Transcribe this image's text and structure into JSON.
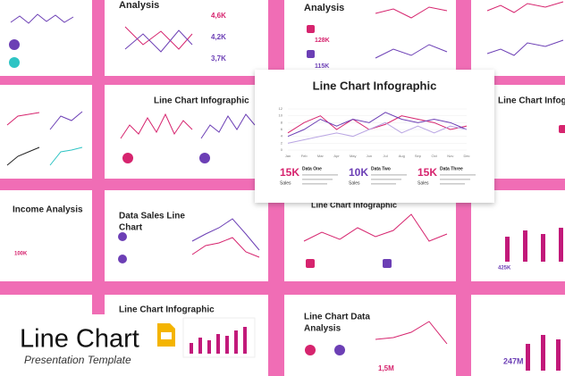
{
  "banner": {
    "title": "Line Chart",
    "subtitle": "Presentation Template"
  },
  "featured": {
    "title": "Line Chart Infographic",
    "chart": {
      "type": "line",
      "categories": [
        "Jan",
        "Feb",
        "Mar",
        "Apr",
        "May",
        "Jun",
        "Jul",
        "Aug",
        "Sep",
        "Oct",
        "Nov",
        "Dec"
      ],
      "ylim": [
        0,
        12
      ],
      "yticks": [
        0,
        2,
        4,
        6,
        8,
        10,
        12
      ],
      "series": [
        {
          "color": "#d6246e",
          "values": [
            5,
            8,
            10,
            6,
            9,
            6,
            7.5,
            10,
            9,
            8,
            6,
            7
          ]
        },
        {
          "color": "#6c3fb5",
          "values": [
            4,
            6,
            9,
            7,
            9,
            8,
            11,
            9,
            8,
            9,
            8,
            6
          ]
        },
        {
          "color": "#b9a5e3",
          "values": [
            2,
            3,
            4,
            5,
            4,
            6,
            8,
            5,
            7,
            5,
            7,
            6
          ]
        }
      ]
    },
    "stats": [
      {
        "value": "15K",
        "unit": "Sales",
        "name": "Data One",
        "color": "#d6246e"
      },
      {
        "value": "10K",
        "unit": "Sales",
        "name": "Data Two",
        "color": "#6c3fb5"
      },
      {
        "value": "15K",
        "unit": "Sales",
        "name": "Data Three",
        "color": "#d6246e"
      }
    ]
  },
  "thumbnails": {
    "analysis_a": {
      "title": "Analysis",
      "figures": [
        "4,6K",
        "4,2K",
        "3,7K"
      ]
    },
    "analysis_b": {
      "title": "Analysis",
      "figures": [
        "128K",
        "115K"
      ]
    },
    "infographic_a": {
      "title": "Line Chart Infographic"
    },
    "infographic_b": {
      "title": "Line Chart Infographic"
    },
    "infographic_c": {
      "title": "Line Chart Infographic"
    },
    "infographic_d": {
      "title": "Line Chart Infographic"
    },
    "income": {
      "title": "Income Analysis",
      "figure": "100K"
    },
    "sales": {
      "title_lines": [
        "Data Sales Line",
        "Chart"
      ]
    },
    "report": {
      "figure": "425K"
    },
    "data_analysis": {
      "title_lines": [
        "Line Chart Data",
        "Analysis"
      ],
      "figure": "1,5M"
    },
    "total": {
      "figure": "247M"
    }
  }
}
